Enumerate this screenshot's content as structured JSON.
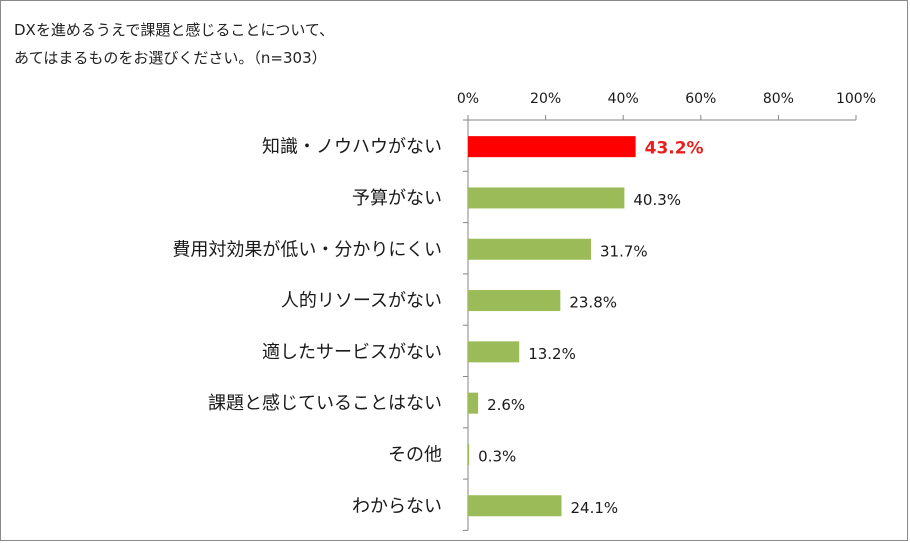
{
  "title": {
    "line1": "DXを進めるうえで課題と感じることについて、",
    "line2": "あてはまるものをお選びください。（n=303）"
  },
  "chart_data": {
    "type": "bar",
    "orientation": "horizontal",
    "categories": [
      "知識・ノウハウがない",
      "予算がない",
      "費用対効果が低い・分かりにくい",
      "人的リソースがない",
      "適したサービスがない",
      "課題と感じていることはない",
      "その他",
      "わからない"
    ],
    "values": [
      43.2,
      40.3,
      31.7,
      23.8,
      13.2,
      2.6,
      0.3,
      24.1
    ],
    "value_labels": [
      "43.2%",
      "40.3%",
      "31.7%",
      "23.8%",
      "13.2%",
      "2.6%",
      "0.3%",
      "24.1%"
    ],
    "xlim": [
      0,
      100
    ],
    "x_ticks": [
      "0%",
      "20%",
      "40%",
      "60%",
      "80%",
      "100%"
    ],
    "x_axis_position": "top",
    "grid": false,
    "legend": "none",
    "highlight_index": 0,
    "colors": {
      "bar": "#9BBB59",
      "highlight": "#FF0000",
      "highlight_label": "#E8211E",
      "axis": "#868686",
      "text": "#1a1a1a"
    }
  }
}
